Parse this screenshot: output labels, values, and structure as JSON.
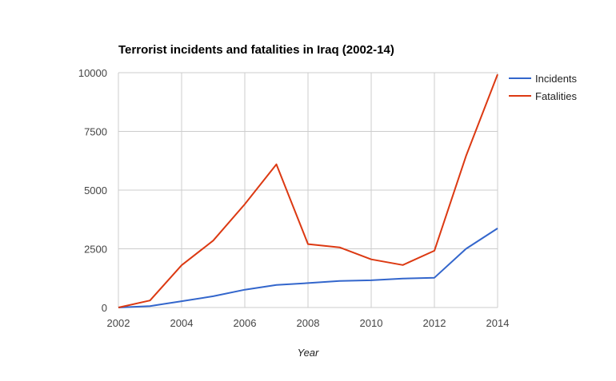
{
  "chart_data": {
    "type": "line",
    "title": "Terrorist incidents and fatalities in Iraq (2002-14)",
    "xlabel": "Year",
    "ylabel": "",
    "x": [
      2002,
      2003,
      2004,
      2005,
      2006,
      2007,
      2008,
      2009,
      2010,
      2011,
      2012,
      2013,
      2014
    ],
    "xlim": [
      2002,
      2014
    ],
    "ylim": [
      0,
      10000
    ],
    "x_ticks": [
      "2002",
      "2004",
      "2006",
      "2008",
      "2010",
      "2012",
      "2014"
    ],
    "y_ticks": [
      "0",
      "2500",
      "5000",
      "7500",
      "10000"
    ],
    "grid": true,
    "legend_position": "right",
    "series": [
      {
        "name": "Incidents",
        "color": "#3366cc",
        "values": [
          0,
          60,
          270,
          480,
          760,
          960,
          1040,
          1130,
          1160,
          1230,
          1270,
          2500,
          3370
        ]
      },
      {
        "name": "Fatalities",
        "color": "#dc3912",
        "values": [
          0,
          300,
          1800,
          2850,
          4400,
          6100,
          2700,
          2560,
          2050,
          1810,
          2420,
          6450,
          9930
        ]
      }
    ]
  }
}
